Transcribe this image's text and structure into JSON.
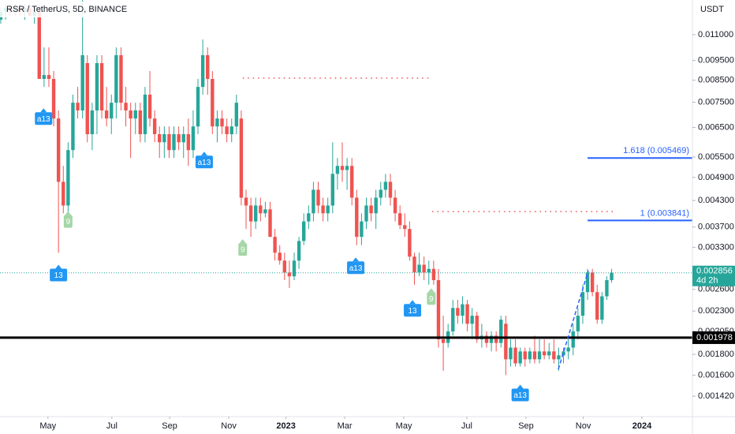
{
  "chart_data": {
    "type": "candlestick",
    "title": "RSR / TetherUS, 5D, BINANCE",
    "currency": "USDT",
    "log_scale": true,
    "grid": false,
    "colors": {
      "up": "#26a69a",
      "down": "#ef5350"
    },
    "xlim": [
      -0.16,
      143.8
    ],
    "xticks": [
      {
        "value": 9.8,
        "label": "May"
      },
      {
        "value": 23.1,
        "label": "Jul"
      },
      {
        "value": 35.1,
        "label": "Sep"
      },
      {
        "value": 47.4,
        "label": "Nov"
      },
      {
        "value": 59.3,
        "label": "2023"
      },
      {
        "value": 71.5,
        "label": "Mar"
      },
      {
        "value": 83.8,
        "label": "May"
      },
      {
        "value": 96.9,
        "label": "Jul"
      },
      {
        "value": 109.2,
        "label": "Sep"
      },
      {
        "value": 121.1,
        "label": "Nov"
      },
      {
        "value": 133.3,
        "label": "2024"
      }
    ],
    "ylim": [
      0.001265,
      0.01338
    ],
    "yticks": [
      {
        "value": 0.011,
        "label": "0.011000"
      },
      {
        "value": 0.0095,
        "label": "0.009500"
      },
      {
        "value": 0.0085,
        "label": "0.008500"
      },
      {
        "value": 0.0075,
        "label": "0.007500"
      },
      {
        "value": 0.0065,
        "label": "0.006500"
      },
      {
        "value": 0.0055,
        "label": "0.005500"
      },
      {
        "value": 0.0049,
        "label": "0.004900"
      },
      {
        "value": 0.0043,
        "label": "0.004300"
      },
      {
        "value": 0.0037,
        "label": "0.003700"
      },
      {
        "value": 0.0033,
        "label": "0.003300"
      },
      {
        "value": 0.0026,
        "label": "0.002600"
      },
      {
        "value": 0.0023,
        "label": "0.002300"
      },
      {
        "value": 0.00205,
        "label": "0.002050"
      },
      {
        "value": 0.0018,
        "label": "0.001800"
      },
      {
        "value": 0.0016,
        "label": "0.001600"
      },
      {
        "value": 0.00142,
        "label": "0.001420"
      }
    ],
    "open": [
      0.01197,
      0.01252,
      0.0128,
      0.01252,
      0.0128,
      0.01252,
      0.0128,
      0.01224,
      0.01252,
      0.00856,
      0.00875,
      0.00856,
      0.00684,
      0.00478,
      0.00418,
      0.00572,
      0.00748,
      0.00716,
      0.00936,
      0.00626,
      0.00716,
      0.00936,
      0.00716,
      0.00684,
      0.00748,
      0.00979,
      0.00748,
      0.00716,
      0.00684,
      0.00716,
      0.00626,
      0.00783,
      0.00684,
      0.00626,
      0.00598,
      0.00626,
      0.00572,
      0.00626,
      0.00598,
      0.00626,
      0.00572,
      0.00654,
      0.00818,
      0.00979,
      0.00856,
      0.00654,
      0.00684,
      0.00654,
      0.00626,
      0.00654,
      0.00684,
      0.00437,
      0.00418,
      0.00382,
      0.00418,
      0.004,
      0.00409,
      0.0035,
      0.0032,
      0.00306,
      0.00286,
      0.0028,
      0.00306,
      0.00342,
      0.00382,
      0.004,
      0.00457,
      0.00418,
      0.004,
      0.00418,
      0.005,
      0.00523,
      0.00511,
      0.00523,
      0.00437,
      0.0035,
      0.00382,
      0.00418,
      0.004,
      0.00437,
      0.00457,
      0.00478,
      0.00437,
      0.004,
      0.00374,
      0.00366,
      0.00313,
      0.00286,
      0.00299,
      0.00286,
      0.00292,
      0.00274,
      0.00196,
      0.00192,
      0.00205,
      0.00234,
      0.00224,
      0.00239,
      0.00214,
      0.00224,
      0.00196,
      0.002,
      0.00192,
      0.002,
      0.00192,
      0.00214,
      0.00175,
      0.00187,
      0.00171,
      0.00183,
      0.00175,
      0.00183,
      0.00175,
      0.00183,
      0.00179,
      0.00183,
      0.00175,
      0.00179,
      0.00183,
      0.00187,
      0.00205,
      0.00224,
      0.00256,
      0.00286,
      0.00256,
      0.00219,
      0.0025,
      0.00274
    ],
    "high": [
      0.0128,
      0.01309,
      0.01309,
      0.01309,
      0.01309,
      0.01309,
      0.01309,
      0.0128,
      0.01309,
      0.01023,
      0.01023,
      0.00895,
      0.00716,
      0.00523,
      0.00598,
      0.00783,
      0.00818,
      0.01338,
      0.00979,
      0.00748,
      0.00979,
      0.00979,
      0.00818,
      0.00783,
      0.01023,
      0.01023,
      0.00818,
      0.00748,
      0.00748,
      0.00748,
      0.00818,
      0.00895,
      0.00716,
      0.00654,
      0.00654,
      0.00654,
      0.00654,
      0.00654,
      0.00654,
      0.00684,
      0.00716,
      0.00856,
      0.0107,
      0.01023,
      0.00895,
      0.00716,
      0.00716,
      0.00684,
      0.00684,
      0.00783,
      0.00716,
      0.00457,
      0.00437,
      0.00437,
      0.00437,
      0.00427,
      0.00427,
      0.00366,
      0.00334,
      0.0032,
      0.00306,
      0.0032,
      0.0035,
      0.004,
      0.00418,
      0.00478,
      0.00478,
      0.00437,
      0.00437,
      0.00598,
      0.00547,
      0.00598,
      0.00547,
      0.00547,
      0.00457,
      0.004,
      0.00437,
      0.00437,
      0.00457,
      0.00478,
      0.005,
      0.005,
      0.00457,
      0.00418,
      0.004,
      0.00382,
      0.0032,
      0.0032,
      0.00313,
      0.00306,
      0.00306,
      0.00292,
      0.00224,
      0.00214,
      0.00245,
      0.00245,
      0.0025,
      0.00245,
      0.00234,
      0.00229,
      0.00214,
      0.00205,
      0.00205,
      0.00205,
      0.00224,
      0.00224,
      0.00196,
      0.00196,
      0.00187,
      0.00187,
      0.00187,
      0.002,
      0.00196,
      0.00196,
      0.00192,
      0.00196,
      0.00187,
      0.00187,
      0.00196,
      0.00214,
      0.00234,
      0.00267,
      0.00292,
      0.00292,
      0.00267,
      0.00256,
      0.0028,
      0.00292
    ],
    "low": [
      0.0117,
      0.01197,
      0.01224,
      0.01224,
      0.01224,
      0.01197,
      0.01224,
      0.0117,
      0.00856,
      0.00818,
      0.00818,
      0.00654,
      0.0032,
      0.004,
      0.004,
      0.00547,
      0.00684,
      0.00684,
      0.00598,
      0.00572,
      0.00626,
      0.00684,
      0.00654,
      0.00626,
      0.00684,
      0.00716,
      0.00654,
      0.00547,
      0.00626,
      0.00598,
      0.00598,
      0.00654,
      0.00598,
      0.00547,
      0.00547,
      0.00547,
      0.00547,
      0.00572,
      0.00547,
      0.00523,
      0.00547,
      0.00626,
      0.00783,
      0.00783,
      0.00626,
      0.00598,
      0.00626,
      0.00598,
      0.00598,
      0.00626,
      0.00418,
      0.00366,
      0.0035,
      0.00366,
      0.00382,
      0.00391,
      0.0035,
      0.00306,
      0.00299,
      0.00274,
      0.00262,
      0.00274,
      0.00292,
      0.00334,
      0.00366,
      0.00382,
      0.004,
      0.00382,
      0.00382,
      0.004,
      0.00457,
      0.00478,
      0.00457,
      0.00418,
      0.00334,
      0.00334,
      0.00366,
      0.00382,
      0.00366,
      0.00418,
      0.00437,
      0.00418,
      0.00382,
      0.00366,
      0.0035,
      0.00306,
      0.00267,
      0.0028,
      0.00274,
      0.00267,
      0.00267,
      0.00187,
      0.00164,
      0.00187,
      0.002,
      0.00214,
      0.00214,
      0.00205,
      0.00196,
      0.00192,
      0.00187,
      0.00187,
      0.00183,
      0.00183,
      0.00187,
      0.0016,
      0.00168,
      0.00168,
      0.00168,
      0.00168,
      0.00171,
      0.00171,
      0.00171,
      0.00175,
      0.00175,
      0.00171,
      0.00164,
      0.00171,
      0.00175,
      0.00179,
      0.00196,
      0.00214,
      0.00245,
      0.0025,
      0.00214,
      0.00214,
      0.00245,
      0.0027
    ],
    "close": [
      0.01252,
      0.0128,
      0.01252,
      0.0128,
      0.01252,
      0.0128,
      0.01224,
      0.01252,
      0.00856,
      0.00875,
      0.00856,
      0.00684,
      0.00478,
      0.00418,
      0.00572,
      0.00748,
      0.00716,
      0.00979,
      0.00626,
      0.00716,
      0.00936,
      0.00716,
      0.00684,
      0.00748,
      0.00979,
      0.00748,
      0.00716,
      0.00684,
      0.00716,
      0.00626,
      0.00783,
      0.00684,
      0.00626,
      0.00598,
      0.00626,
      0.00572,
      0.00626,
      0.00598,
      0.00626,
      0.00572,
      0.00654,
      0.00818,
      0.00979,
      0.00856,
      0.00654,
      0.00684,
      0.00654,
      0.00626,
      0.00654,
      0.00748,
      0.00437,
      0.00418,
      0.00382,
      0.00418,
      0.004,
      0.00409,
      0.0035,
      0.0032,
      0.00306,
      0.00286,
      0.0028,
      0.00306,
      0.00342,
      0.00382,
      0.004,
      0.00457,
      0.00418,
      0.004,
      0.00418,
      0.005,
      0.00523,
      0.00511,
      0.00523,
      0.00437,
      0.0035,
      0.00382,
      0.00418,
      0.004,
      0.00437,
      0.00457,
      0.00478,
      0.00437,
      0.004,
      0.00374,
      0.00366,
      0.00313,
      0.00286,
      0.00299,
      0.00286,
      0.00292,
      0.00274,
      0.00196,
      0.00192,
      0.00205,
      0.00234,
      0.00224,
      0.00239,
      0.00214,
      0.00224,
      0.00196,
      0.002,
      0.00192,
      0.002,
      0.00192,
      0.00219,
      0.00175,
      0.00187,
      0.00171,
      0.00183,
      0.00175,
      0.00183,
      0.00175,
      0.00183,
      0.00179,
      0.00183,
      0.00175,
      0.00179,
      0.00183,
      0.00187,
      0.00205,
      0.00224,
      0.00256,
      0.00286,
      0.00256,
      0.00219,
      0.0025,
      0.00274,
      0.002856
    ],
    "last_price": {
      "value": 0.002856,
      "label": "0.002856",
      "countdown": "4d 2h",
      "color": "#26a69a"
    },
    "horizontal_line": {
      "value": 0.001978,
      "label": "0.001978",
      "color": "#000000"
    },
    "fib_levels": [
      {
        "value": 0.005469,
        "label": "1.618 (0.005469)",
        "x_start": 122,
        "color": "#2962ff"
      },
      {
        "value": 0.003841,
        "label": "1 (0.003841)",
        "x_start": 122,
        "color": "#2962ff"
      }
    ],
    "dotted_levels": [
      {
        "value": 0.0086,
        "x": [
          50.3,
          89.2
        ],
        "color": "#ef5350"
      },
      {
        "value": 0.00404,
        "x": [
          89.7,
          127.4
        ],
        "color": "#ef5350"
      }
    ],
    "annotations": [
      {
        "text": "a13",
        "x": 8.9,
        "y": 0.00684,
        "color": "#2196f3"
      },
      {
        "text": "9",
        "x": 14,
        "y": 0.00382,
        "color": "#a5d6a7"
      },
      {
        "text": "13",
        "x": 12,
        "y": 0.00282,
        "color": "#2196f3"
      },
      {
        "text": "a13",
        "x": 42.3,
        "y": 0.00535,
        "color": "#2196f3"
      },
      {
        "text": "9",
        "x": 50.3,
        "y": 0.00326,
        "color": "#a5d6a7"
      },
      {
        "text": "a13",
        "x": 73.8,
        "y": 0.00294,
        "color": "#2196f3"
      },
      {
        "text": "13",
        "x": 85.6,
        "y": 0.00231,
        "color": "#2196f3"
      },
      {
        "text": "9",
        "x": 89.5,
        "y": 0.00247,
        "color": "#a5d6a7"
      },
      {
        "text": "a13",
        "x": 108,
        "y": 0.00143,
        "color": "#2196f3"
      }
    ]
  }
}
